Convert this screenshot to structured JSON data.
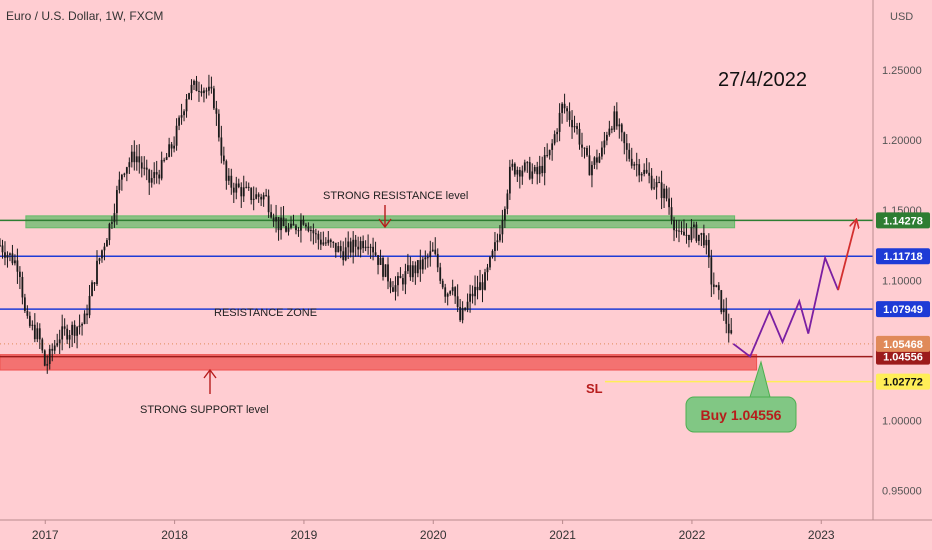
{
  "header": {
    "symbol_title": "Euro / U.S. Dollar, 1W, FXCM"
  },
  "chart_data": {
    "type": "candlestick",
    "title": "Euro / U.S. Dollar, 1W, FXCM",
    "currency": "USD",
    "date_label": "27/4/2022",
    "x_range": [
      2016.65,
      2023.4
    ],
    "y_range": [
      0.929,
      1.3
    ],
    "x_ticks": [
      {
        "label": "2017",
        "value": 2017
      },
      {
        "label": "2018",
        "value": 2018
      },
      {
        "label": "2019",
        "value": 2019
      },
      {
        "label": "2020",
        "value": 2020
      },
      {
        "label": "2021",
        "value": 2021
      },
      {
        "label": "2022",
        "value": 2022
      },
      {
        "label": "2023",
        "value": 2023
      }
    ],
    "y_ticks": [
      "1.25000",
      "1.20000",
      "1.15000",
      "1.10000",
      "1.05000",
      "1.00000",
      "0.95000"
    ],
    "price_path": [
      [
        2016.65,
        1.125
      ],
      [
        2016.8,
        1.11
      ],
      [
        2016.85,
        1.07
      ],
      [
        2016.95,
        1.06
      ],
      [
        2017.0,
        1.038
      ],
      [
        2017.1,
        1.06
      ],
      [
        2017.2,
        1.065
      ],
      [
        2017.3,
        1.07
      ],
      [
        2017.4,
        1.11
      ],
      [
        2017.5,
        1.14
      ],
      [
        2017.6,
        1.18
      ],
      [
        2017.7,
        1.19
      ],
      [
        2017.8,
        1.17
      ],
      [
        2017.9,
        1.18
      ],
      [
        2018.0,
        1.2
      ],
      [
        2018.1,
        1.235
      ],
      [
        2018.2,
        1.24
      ],
      [
        2018.3,
        1.23
      ],
      [
        2018.4,
        1.17
      ],
      [
        2018.5,
        1.165
      ],
      [
        2018.6,
        1.16
      ],
      [
        2018.7,
        1.16
      ],
      [
        2018.8,
        1.14
      ],
      [
        2018.9,
        1.135
      ],
      [
        2019.0,
        1.145
      ],
      [
        2019.1,
        1.13
      ],
      [
        2019.2,
        1.125
      ],
      [
        2019.3,
        1.12
      ],
      [
        2019.4,
        1.125
      ],
      [
        2019.5,
        1.13
      ],
      [
        2019.6,
        1.11
      ],
      [
        2019.7,
        1.095
      ],
      [
        2019.8,
        1.105
      ],
      [
        2019.9,
        1.11
      ],
      [
        2020.0,
        1.12
      ],
      [
        2020.1,
        1.09
      ],
      [
        2020.15,
        1.1
      ],
      [
        2020.2,
        1.07
      ],
      [
        2020.3,
        1.09
      ],
      [
        2020.4,
        1.1
      ],
      [
        2020.5,
        1.13
      ],
      [
        2020.6,
        1.18
      ],
      [
        2020.7,
        1.18
      ],
      [
        2020.8,
        1.175
      ],
      [
        2020.9,
        1.19
      ],
      [
        2021.0,
        1.225
      ],
      [
        2021.1,
        1.21
      ],
      [
        2021.2,
        1.18
      ],
      [
        2021.3,
        1.19
      ],
      [
        2021.35,
        1.21
      ],
      [
        2021.4,
        1.215
      ],
      [
        2021.5,
        1.19
      ],
      [
        2021.6,
        1.18
      ],
      [
        2021.7,
        1.17
      ],
      [
        2021.8,
        1.16
      ],
      [
        2021.9,
        1.13
      ],
      [
        2022.0,
        1.135
      ],
      [
        2022.1,
        1.13
      ],
      [
        2022.15,
        1.1
      ],
      [
        2022.2,
        1.09
      ],
      [
        2022.32,
        1.0547
      ]
    ],
    "levels": [
      {
        "name": "1.14278",
        "value": 1.14278,
        "color": "#2e7d32"
      },
      {
        "name": "1.11718",
        "value": 1.11718,
        "color": "#1e3bd6"
      },
      {
        "name": "1.07949",
        "value": 1.07949,
        "color": "#1e3bd6"
      },
      {
        "name": "1.04556",
        "value": 1.04556,
        "color": "#9c1b1b"
      }
    ],
    "current_price": {
      "label": "1.05468",
      "value": 1.05468,
      "color": "#e08a5a"
    },
    "stop_loss": {
      "label": "1.02772",
      "value": 1.02772,
      "color": "#ffee58"
    },
    "zones": [
      {
        "name": "resistance",
        "label": "STRONG RESISTANCE level",
        "y_from": 1.1375,
        "y_to": 1.146,
        "x_from": 2016.85,
        "x_to": 2022.33,
        "color": "#66bb6a"
      },
      {
        "name": "support",
        "label": "STRONG SUPPORT level",
        "y_from": 1.036,
        "y_to": 1.047,
        "x_from": 2016.65,
        "x_to": 2022.5,
        "color": "#ef5350"
      }
    ],
    "annotations": {
      "resistance_zone_label": "RESISTANCE ZONE",
      "sl_label": "SL",
      "buy_label": "Buy 1.04556"
    },
    "projection": [
      [
        2022.32,
        1.0547
      ],
      [
        2022.45,
        1.0456
      ],
      [
        2022.6,
        1.078
      ],
      [
        2022.7,
        1.056
      ],
      [
        2022.83,
        1.085
      ],
      [
        2022.9,
        1.062
      ],
      [
        2023.03,
        1.116
      ],
      [
        2023.13,
        1.093
      ],
      [
        2023.27,
        1.143
      ]
    ],
    "grid": false,
    "colors": {
      "background": "#ffcdd2",
      "candles": "#1a1a1a",
      "projection": "#7b1fa2",
      "buy_box": "#81c784"
    }
  }
}
